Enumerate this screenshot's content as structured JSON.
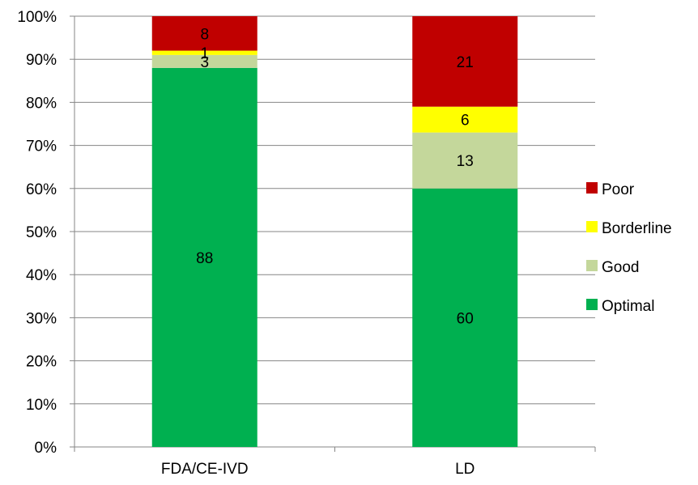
{
  "chart_data": {
    "type": "bar",
    "stacked": true,
    "normalized": true,
    "title": "",
    "categories": [
      "FDA/CE-IVD",
      "LD"
    ],
    "series": [
      {
        "name": "Optimal",
        "values": [
          88,
          60
        ],
        "color": "#00b050"
      },
      {
        "name": "Good",
        "values": [
          3,
          13
        ],
        "color": "#c4d79b"
      },
      {
        "name": "Borderline",
        "values": [
          1,
          6
        ],
        "color": "#ffff00"
      },
      {
        "name": "Poor",
        "values": [
          8,
          21
        ],
        "color": "#c00000"
      }
    ],
    "ylim": [
      0,
      100
    ],
    "yticks": [
      "0%",
      "10%",
      "20%",
      "30%",
      "40%",
      "50%",
      "60%",
      "70%",
      "80%",
      "90%",
      "100%"
    ],
    "grid": true,
    "legend": "right"
  }
}
